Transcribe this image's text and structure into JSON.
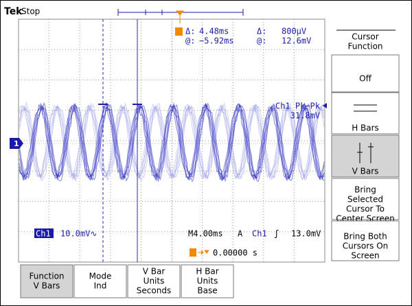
{
  "header": {
    "brand": "Tek",
    "status": "Stop"
  },
  "cursor_readout": {
    "delta_time_label": "Δ:",
    "delta_time": "4.48ms",
    "delta_volt_label": "Δ:",
    "delta_volt": "800µV",
    "at_time_label": "@:",
    "at_time": "−5.92ms",
    "at_volt_label": "@:",
    "at_volt": "12.6mV"
  },
  "measurement": {
    "label": "Ch1 Pk−Pk",
    "value": "31.8mV"
  },
  "channel_marker": "1",
  "status_bar": {
    "channel": "Ch1",
    "scale": "10.0mV∿",
    "timebase": "M4.00ms",
    "mode": "A",
    "trigger_source": "Ch1",
    "trigger_slope": "ʃ",
    "trigger_level": "13.0mV",
    "trigger_position": "0.00000 s"
  },
  "side_menu": {
    "title": [
      "Cursor",
      "Function"
    ],
    "buttons": [
      [
        "Off"
      ],
      [
        "H Bars"
      ],
      [
        "V Bars"
      ],
      [
        "Bring",
        "Selected",
        "Cursor To",
        "Center Screen"
      ],
      [
        "Bring Both",
        "Cursors On",
        "Screen"
      ]
    ]
  },
  "bottom_menu": [
    [
      "Function",
      "V Bars"
    ],
    [
      "Mode",
      "Ind"
    ],
    [
      "V Bar",
      "Units",
      "Seconds"
    ],
    [
      "H Bar",
      "Units",
      "Base"
    ]
  ]
}
